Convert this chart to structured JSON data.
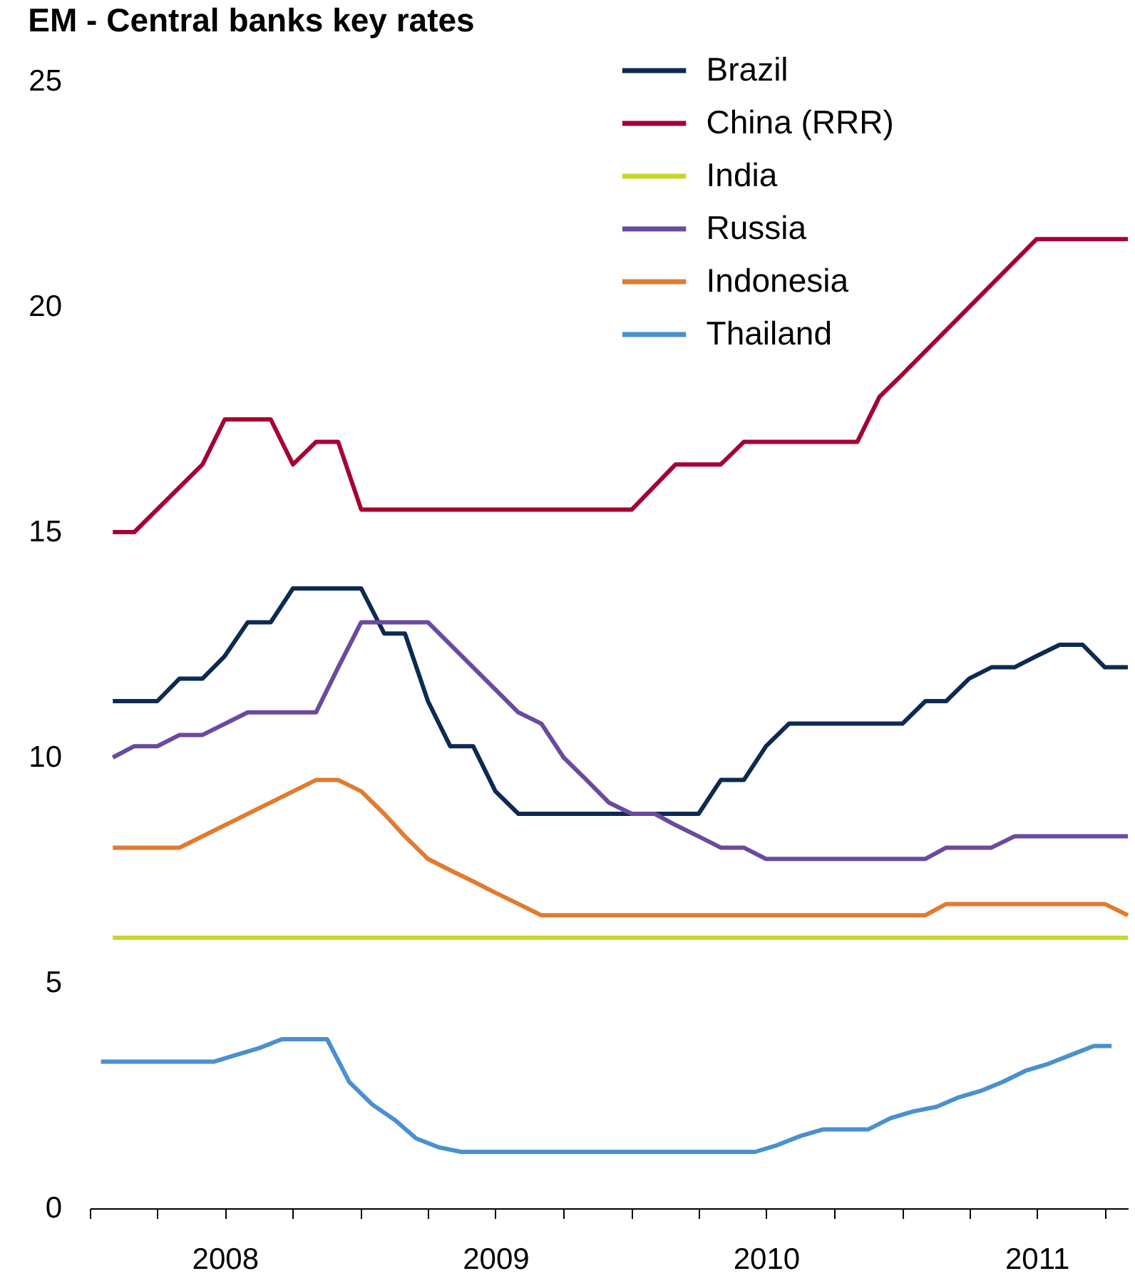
{
  "chart_data": {
    "type": "line",
    "title": "EM - Central banks key rates",
    "xlim": [
      "2008-01-01",
      "2011-11-01"
    ],
    "xticks": [
      {
        "value": "2008-01-01",
        "label": null
      },
      {
        "value": "2008-04-01",
        "label": null
      },
      {
        "value": "2008-07-01",
        "label": "2008"
      },
      {
        "value": "2008-10-01",
        "label": null
      },
      {
        "value": "2009-01-01",
        "label": null
      },
      {
        "value": "2009-04-01",
        "label": null
      },
      {
        "value": "2009-07-01",
        "label": "2009"
      },
      {
        "value": "2009-10-01",
        "label": null
      },
      {
        "value": "2010-01-01",
        "label": null
      },
      {
        "value": "2010-04-01",
        "label": null
      },
      {
        "value": "2010-07-01",
        "label": "2010"
      },
      {
        "value": "2010-10-01",
        "label": null
      },
      {
        "value": "2011-01-01",
        "label": null
      },
      {
        "value": "2011-04-01",
        "label": null
      },
      {
        "value": "2011-07-01",
        "label": "2011"
      },
      {
        "value": "2011-10-01",
        "label": null
      }
    ],
    "ylim": [
      0,
      25
    ],
    "yticks": [
      0,
      5,
      10,
      15,
      20,
      25
    ],
    "grid": false,
    "legend": "top right",
    "line_style": "solid",
    "series": [
      {
        "name": "Brazil",
        "color": "#0d2a52",
        "x": [
          "2008-02",
          "2008-04",
          "2008-05",
          "2008-06",
          "2008-07",
          "2008-08",
          "2008-09",
          "2008-10",
          "2009-01",
          "2009-02",
          "2009-03",
          "2009-04",
          "2009-05",
          "2009-06",
          "2009-07",
          "2009-08",
          "2010-04",
          "2010-05",
          "2010-06",
          "2010-07",
          "2010-08",
          "2011-01",
          "2011-02",
          "2011-03",
          "2011-04",
          "2011-05",
          "2011-06",
          "2011-07",
          "2011-08",
          "2011-09",
          "2011-10",
          "2011-11"
        ],
        "values": [
          11.25,
          11.25,
          11.75,
          11.75,
          12.25,
          13.0,
          13.0,
          13.75,
          13.75,
          12.75,
          12.75,
          11.25,
          10.25,
          10.25,
          9.25,
          8.75,
          8.75,
          9.5,
          9.5,
          10.25,
          10.75,
          10.75,
          11.25,
          11.25,
          11.75,
          12.0,
          12.0,
          12.25,
          12.5,
          12.5,
          12.0,
          12.0
        ]
      },
      {
        "name": "China (RRR)",
        "color": "#a50034",
        "x": [
          "2008-02",
          "2008-03",
          "2008-06",
          "2008-07",
          "2008-09",
          "2008-10",
          "2008-11",
          "2008-12",
          "2009-01",
          "2010-01",
          "2010-03",
          "2010-05",
          "2010-06",
          "2010-11",
          "2010-12",
          "2011-01",
          "2011-07",
          "2011-11"
        ],
        "values": [
          15.0,
          15.0,
          16.5,
          17.5,
          17.5,
          16.5,
          17.0,
          17.0,
          15.5,
          15.5,
          16.5,
          16.5,
          17.0,
          17.0,
          18.0,
          18.5,
          21.5,
          21.5
        ]
      },
      {
        "name": "India",
        "color": "#c8d62a",
        "x": [
          "2008-02",
          "2011-11"
        ],
        "values": [
          6.0,
          6.0
        ]
      },
      {
        "name": "Russia",
        "color": "#6a4aa0",
        "x": [
          "2008-02",
          "2008-03",
          "2008-04",
          "2008-05",
          "2008-06",
          "2008-08",
          "2008-11",
          "2008-12",
          "2009-01",
          "2009-04",
          "2009-08",
          "2009-09",
          "2009-10",
          "2009-11",
          "2009-12",
          "2010-01",
          "2010-02",
          "2010-03",
          "2010-04",
          "2010-05",
          "2010-06",
          "2010-07",
          "2011-02",
          "2011-03",
          "2011-05",
          "2011-06",
          "2011-11"
        ],
        "values": [
          10.0,
          10.25,
          10.25,
          10.5,
          10.5,
          11.0,
          11.0,
          12.0,
          13.0,
          13.0,
          11.0,
          10.75,
          10.0,
          9.5,
          9.0,
          8.75,
          8.75,
          8.5,
          8.25,
          8.0,
          8.0,
          7.75,
          7.75,
          8.0,
          8.0,
          8.25,
          8.25
        ]
      },
      {
        "name": "Indonesia",
        "color": "#e07b2f",
        "x": [
          "2008-02",
          "2008-05",
          "2008-11",
          "2008-12",
          "2009-01",
          "2009-02",
          "2009-03",
          "2009-04",
          "2009-05",
          "2009-06",
          "2009-07",
          "2009-08",
          "2009-09",
          "2011-02",
          "2011-03",
          "2011-10",
          "2011-11"
        ],
        "values": [
          8.0,
          8.0,
          9.5,
          9.5,
          9.25,
          8.75,
          8.25,
          7.75,
          7.5,
          7.25,
          7.0,
          6.75,
          6.5,
          6.5,
          6.75,
          6.75,
          6.5
        ]
      },
      {
        "name": "Thailand",
        "color": "#4a90d0",
        "x": [
          "2008-01-16",
          "2008-06-16",
          "2008-07-16",
          "2008-08-16",
          "2008-09-16",
          "2008-11-16",
          "2008-12-16",
          "2009-01-16",
          "2009-02-16",
          "2009-03-16",
          "2009-04-16",
          "2009-05-16",
          "2010-06-16",
          "2010-07-16",
          "2010-08-16",
          "2010-09-16",
          "2010-11-16",
          "2010-12-16",
          "2011-01-16",
          "2011-02-16",
          "2011-03-16",
          "2011-04-16",
          "2011-05-16",
          "2011-06-16",
          "2011-07-16",
          "2011-08-16",
          "2011-09-16",
          "2011-10-10"
        ],
        "values": [
          3.25,
          3.25,
          3.4,
          3.55,
          3.75,
          3.75,
          2.8,
          2.3,
          1.95,
          1.55,
          1.35,
          1.25,
          1.25,
          1.4,
          1.6,
          1.75,
          1.75,
          2.0,
          2.15,
          2.25,
          2.45,
          2.6,
          2.8,
          3.05,
          3.2,
          3.4,
          3.6,
          3.6
        ]
      }
    ]
  }
}
